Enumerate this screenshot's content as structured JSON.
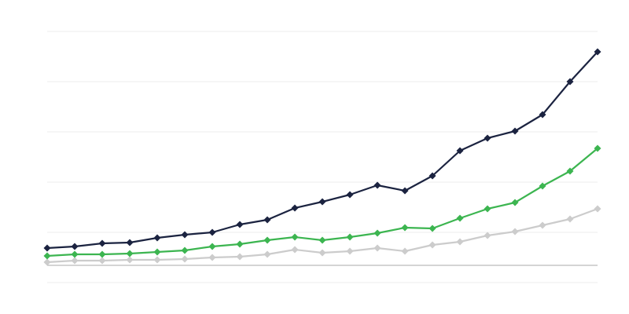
{
  "chart_data": {
    "type": "line",
    "title": "",
    "xlabel": "",
    "ylabel": "",
    "x": [
      1,
      2,
      3,
      4,
      5,
      6,
      7,
      8,
      9,
      10,
      11,
      12,
      13,
      14,
      15,
      16,
      17,
      18,
      19,
      20,
      21
    ],
    "ylim": [
      -22,
      298
    ],
    "gridlines": [
      -22,
      42,
      106,
      170,
      234,
      298
    ],
    "baseline": 0,
    "grid": true,
    "marker": "diamond",
    "series": [
      {
        "color": "#cccccc",
        "values": [
          4,
          6,
          6,
          7,
          7,
          8,
          10,
          11,
          14,
          20,
          16,
          18,
          22,
          18,
          26,
          30,
          38,
          43,
          51,
          59,
          72
        ]
      },
      {
        "color": "#3cb550",
        "values": [
          12,
          14,
          14,
          15,
          17,
          19,
          24,
          27,
          32,
          36,
          32,
          36,
          41,
          48,
          47,
          60,
          72,
          80,
          101,
          120,
          149
        ]
      },
      {
        "color": "#1b2340",
        "values": [
          22,
          24,
          28,
          29,
          35,
          39,
          42,
          52,
          58,
          73,
          81,
          90,
          102,
          95,
          114,
          146,
          162,
          171,
          192,
          234,
          272
        ]
      }
    ]
  }
}
